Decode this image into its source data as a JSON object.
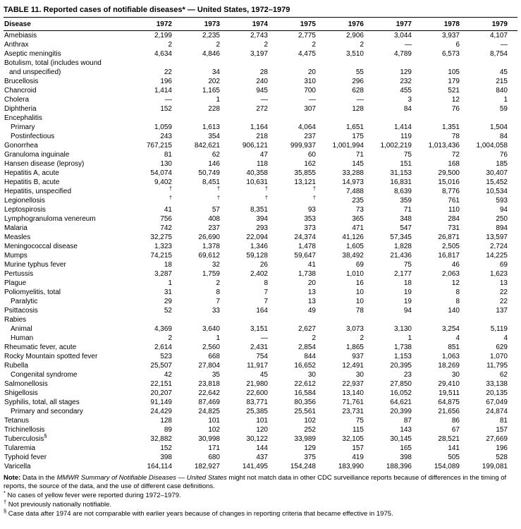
{
  "title": "TABLE 11. Reported cases of notifiable diseases* — United States, 1972–1979",
  "table": {
    "disease_header": "Disease",
    "year_headers": [
      "1972",
      "1973",
      "1974",
      "1975",
      "1976",
      "1977",
      "1978",
      "1979"
    ],
    "rows": [
      {
        "label": "Amebiasis",
        "values": [
          "2,199",
          "2,235",
          "2,743",
          "2,775",
          "2,906",
          "3,044",
          "3,937",
          "4,107"
        ]
      },
      {
        "label": "Anthrax",
        "values": [
          "2",
          "2",
          "2",
          "2",
          "2",
          "—",
          "6",
          "—"
        ]
      },
      {
        "label": "Aseptic meningitis",
        "values": [
          "4,634",
          "4,846",
          "3,197",
          "4,475",
          "3,510",
          "4,789",
          "6,573",
          "8,754"
        ]
      },
      {
        "label": "Botulism, total (includes wound",
        "label2": "and unspecified)",
        "values": [
          "22",
          "34",
          "28",
          "20",
          "55",
          "129",
          "105",
          "45"
        ]
      },
      {
        "label": "Brucellosis",
        "values": [
          "196",
          "202",
          "240",
          "310",
          "296",
          "232",
          "179",
          "215"
        ]
      },
      {
        "label": "Chancroid",
        "values": [
          "1,414",
          "1,165",
          "945",
          "700",
          "628",
          "455",
          "521",
          "840"
        ]
      },
      {
        "label": "Cholera",
        "values": [
          "—",
          "1",
          "—",
          "—",
          "—",
          "3",
          "12",
          "1"
        ]
      },
      {
        "label": "Diphtheria",
        "values": [
          "152",
          "228",
          "272",
          "307",
          "128",
          "84",
          "76",
          "59"
        ]
      },
      {
        "label": "Encephalitis",
        "values": []
      },
      {
        "label": "Primary",
        "indent": 1,
        "values": [
          "1,059",
          "1,613",
          "1,164",
          "4,064",
          "1,651",
          "1,414",
          "1,351",
          "1,504"
        ]
      },
      {
        "label": "Postinfectious",
        "indent": 1,
        "values": [
          "243",
          "354",
          "218",
          "237",
          "175",
          "119",
          "78",
          "84"
        ]
      },
      {
        "label": "Gonorrhea",
        "values": [
          "767,215",
          "842,621",
          "906,121",
          "999,937",
          "1,001,994",
          "1,002,219",
          "1,013,436",
          "1,004,058"
        ]
      },
      {
        "label": "Granuloma inguinale",
        "values": [
          "81",
          "62",
          "47",
          "60",
          "71",
          "75",
          "72",
          "76"
        ]
      },
      {
        "label": "Hansen disease (leprosy)",
        "values": [
          "130",
          "146",
          "118",
          "162",
          "145",
          "151",
          "168",
          "185"
        ]
      },
      {
        "label": "Hepatitis A, acute",
        "values": [
          "54,074",
          "50,749",
          "40,358",
          "35,855",
          "33,288",
          "31,153",
          "29,500",
          "30,407"
        ]
      },
      {
        "label": "Hepatitis B, acute",
        "values": [
          "9,402",
          "8,451",
          "10,631",
          "13,121",
          "14,973",
          "16,831",
          "15,016",
          "15,452"
        ]
      },
      {
        "label": "Hepatitis, unspecified",
        "values": [
          "†",
          "†",
          "†",
          "†",
          "7,488",
          "8,639",
          "8,776",
          "10,534"
        ]
      },
      {
        "label": "Legionellosis",
        "values": [
          "†",
          "†",
          "†",
          "†",
          "235",
          "359",
          "761",
          "593"
        ]
      },
      {
        "label": "Leptospirosis",
        "values": [
          "41",
          "57",
          "8,351",
          "93",
          "73",
          "71",
          "110",
          "94"
        ]
      },
      {
        "label": "Lymphogranuloma venereum",
        "values": [
          "756",
          "408",
          "394",
          "353",
          "365",
          "348",
          "284",
          "250"
        ]
      },
      {
        "label": "Malaria",
        "values": [
          "742",
          "237",
          "293",
          "373",
          "471",
          "547",
          "731",
          "894"
        ]
      },
      {
        "label": "Measles",
        "values": [
          "32,275",
          "26,690",
          "22,094",
          "24,374",
          "41,126",
          "57,345",
          "26,871",
          "13,597"
        ]
      },
      {
        "label": "Meningococcal disease",
        "values": [
          "1,323",
          "1,378",
          "1,346",
          "1,478",
          "1,605",
          "1,828",
          "2,505",
          "2,724"
        ]
      },
      {
        "label": "Mumps",
        "values": [
          "74,215",
          "69,612",
          "59,128",
          "59,647",
          "38,492",
          "21,436",
          "16,817",
          "14,225"
        ]
      },
      {
        "label": "Murine typhus fever",
        "values": [
          "18",
          "32",
          "26",
          "41",
          "69",
          "75",
          "46",
          "69"
        ]
      },
      {
        "label": "Pertussis",
        "values": [
          "3,287",
          "1,759",
          "2,402",
          "1,738",
          "1,010",
          "2,177",
          "2,063",
          "1,623"
        ]
      },
      {
        "label": "Plague",
        "values": [
          "1",
          "2",
          "8",
          "20",
          "16",
          "18",
          "12",
          "13"
        ]
      },
      {
        "label": "Poliomyelitis, total",
        "values": [
          "31",
          "8",
          "7",
          "13",
          "10",
          "19",
          "8",
          "22"
        ]
      },
      {
        "label": "Paralytic",
        "indent": 1,
        "values": [
          "29",
          "7",
          "7",
          "13",
          "10",
          "19",
          "8",
          "22"
        ]
      },
      {
        "label": "Psittacosis",
        "values": [
          "52",
          "33",
          "164",
          "49",
          "78",
          "94",
          "140",
          "137"
        ]
      },
      {
        "label": "Rabies",
        "values": []
      },
      {
        "label": "Animal",
        "indent": 1,
        "values": [
          "4,369",
          "3,640",
          "3,151",
          "2,627",
          "3,073",
          "3,130",
          "3,254",
          "5,119"
        ]
      },
      {
        "label": "Human",
        "indent": 1,
        "values": [
          "2",
          "1",
          "—",
          "2",
          "2",
          "1",
          "4",
          "4"
        ]
      },
      {
        "label": "Rheumatic fever, acute",
        "values": [
          "2,614",
          "2,560",
          "2,431",
          "2,854",
          "1,865",
          "1,738",
          "851",
          "629"
        ]
      },
      {
        "label": "Rocky Mountain spotted fever",
        "values": [
          "523",
          "668",
          "754",
          "844",
          "937",
          "1,153",
          "1,063",
          "1,070"
        ]
      },
      {
        "label": "Rubella",
        "values": [
          "25,507",
          "27,804",
          "11,917",
          "16,652",
          "12,491",
          "20,395",
          "18,269",
          "11,795"
        ]
      },
      {
        "label": "Congenital syndrome",
        "indent": 1,
        "values": [
          "42",
          "35",
          "45",
          "30",
          "30",
          "23",
          "30",
          "62"
        ]
      },
      {
        "label": "Salmonellosis",
        "values": [
          "22,151",
          "23,818",
          "21,980",
          "22,612",
          "22,937",
          "27,850",
          "29,410",
          "33,138"
        ]
      },
      {
        "label": "Shigellosis",
        "values": [
          "20,207",
          "22,642",
          "22,600",
          "16,584",
          "13,140",
          "16,052",
          "19,511",
          "20,135"
        ]
      },
      {
        "label": "Syphilis, total, all stages",
        "values": [
          "91,149",
          "87,469",
          "83,771",
          "80,356",
          "71,761",
          "64,621",
          "64,875",
          "67,049"
        ]
      },
      {
        "label": "Primary and secondary",
        "indent": 1,
        "values": [
          "24,429",
          "24,825",
          "25,385",
          "25,561",
          "23,731",
          "20,399",
          "21,656",
          "24,874"
        ]
      },
      {
        "label": "Tetanus",
        "values": [
          "128",
          "101",
          "101",
          "102",
          "75",
          "87",
          "86",
          "81"
        ]
      },
      {
        "label": "Trichinellosis",
        "values": [
          "89",
          "102",
          "120",
          "252",
          "115",
          "143",
          "67",
          "157"
        ]
      },
      {
        "label": "Tuberculosis",
        "sup": "§",
        "values": [
          "32,882",
          "30,998",
          "30,122",
          "33,989",
          "32,105",
          "30,145",
          "28,521",
          "27,669"
        ]
      },
      {
        "label": "Tularemia",
        "values": [
          "152",
          "171",
          "144",
          "129",
          "157",
          "165",
          "141",
          "196"
        ]
      },
      {
        "label": "Typhoid fever",
        "values": [
          "398",
          "680",
          "437",
          "375",
          "419",
          "398",
          "505",
          "528"
        ]
      },
      {
        "label": "Varicella",
        "values": [
          "164,114",
          "182,927",
          "141,495",
          "154,248",
          "183,990",
          "188,396",
          "154,089",
          "199,081"
        ]
      }
    ]
  },
  "notes": {
    "note_prefix": "Note:",
    "note_pre_italic": " Data in the ",
    "note_italic": "MMWR Summary of Notifiable Diseases — United States",
    "note_rest": " might not match data in other CDC surveillance reports because of differences in the timing of reports, the source of the data, and the use of different case definitions.",
    "footnotes": [
      {
        "marker": "*",
        "text": "No cases of yellow fever were reported during 1972–1979."
      },
      {
        "marker": "†",
        "text": "Not previously nationally notifiable."
      },
      {
        "marker": "§",
        "text": "Case data after 1974 are not comparable with earlier years because of changes in reporting criteria that became effective in 1975."
      }
    ]
  }
}
